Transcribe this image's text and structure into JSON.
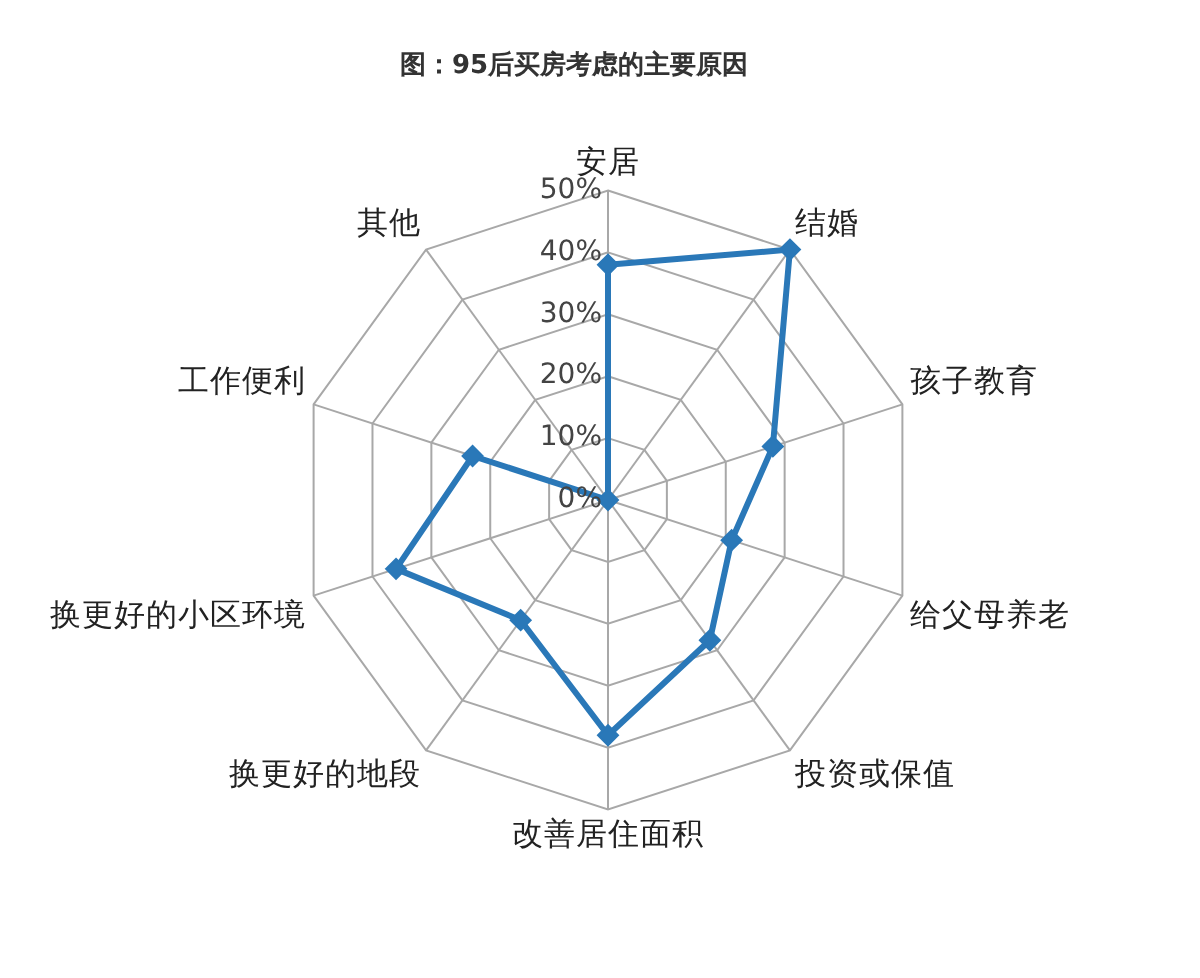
{
  "chart_data": {
    "type": "radar",
    "title": "图：95后买房考虑的主要原因",
    "categories": [
      "安居",
      "结婚",
      "孩子教育",
      "给父母养老",
      "投资或保值",
      "改善居住面积",
      "换更好的地段",
      "换更好的小区环境",
      "工作便利",
      "其他"
    ],
    "series": [
      {
        "color": "#2a78b8",
        "values": [
          38,
          50,
          28,
          21,
          28,
          38,
          24,
          36,
          23,
          0
        ]
      }
    ],
    "ylim": [
      0,
      50
    ],
    "yticks": [
      {
        "value": 0,
        "label": "0%"
      },
      {
        "value": 10,
        "label": "10%"
      },
      {
        "value": 20,
        "label": "20%"
      },
      {
        "value": 30,
        "label": "30%"
      },
      {
        "value": 40,
        "label": "40%"
      },
      {
        "value": 50,
        "label": "50%"
      }
    ],
    "grid": true,
    "legend": false,
    "marker": "diamond"
  }
}
